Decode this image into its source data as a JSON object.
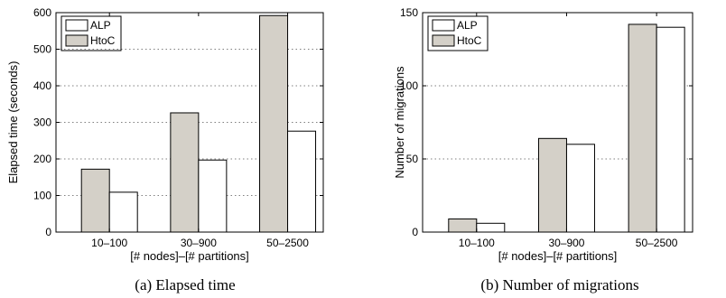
{
  "colors": {
    "HtoC": "#d4d0c8",
    "ALP": "#ffffff"
  },
  "chart_data": [
    {
      "type": "bar",
      "categories": [
        "10–100",
        "30–900",
        "50–2500"
      ],
      "series": [
        {
          "name": "HtoC",
          "values": [
            172,
            326,
            592
          ]
        },
        {
          "name": "ALP",
          "values": [
            109,
            197,
            276
          ]
        }
      ],
      "legend_entries": [
        "ALP",
        "HtoC"
      ],
      "legend_position": "top-left",
      "ylim": [
        0,
        600
      ],
      "yticks": [
        "0",
        "100",
        "200",
        "300",
        "400",
        "500",
        "600"
      ],
      "xlabel": "[# nodes]–[# partitions]",
      "ylabel": "Elapsed time (seconds)",
      "caption": "(a) Elapsed time",
      "grid": true
    },
    {
      "type": "bar",
      "categories": [
        "10–100",
        "30–900",
        "50–2500"
      ],
      "series": [
        {
          "name": "HtoC",
          "values": [
            9,
            64,
            142
          ]
        },
        {
          "name": "ALP",
          "values": [
            6,
            60,
            140
          ]
        }
      ],
      "legend_entries": [
        "ALP",
        "HtoC"
      ],
      "legend_position": "top-left",
      "ylim": [
        0,
        150
      ],
      "yticks": [
        "0",
        "50",
        "100",
        "150"
      ],
      "xlabel": "[# nodes]–[# partitions]",
      "ylabel": "Number of migrations",
      "caption": "(b) Number of migrations",
      "grid": true
    }
  ]
}
